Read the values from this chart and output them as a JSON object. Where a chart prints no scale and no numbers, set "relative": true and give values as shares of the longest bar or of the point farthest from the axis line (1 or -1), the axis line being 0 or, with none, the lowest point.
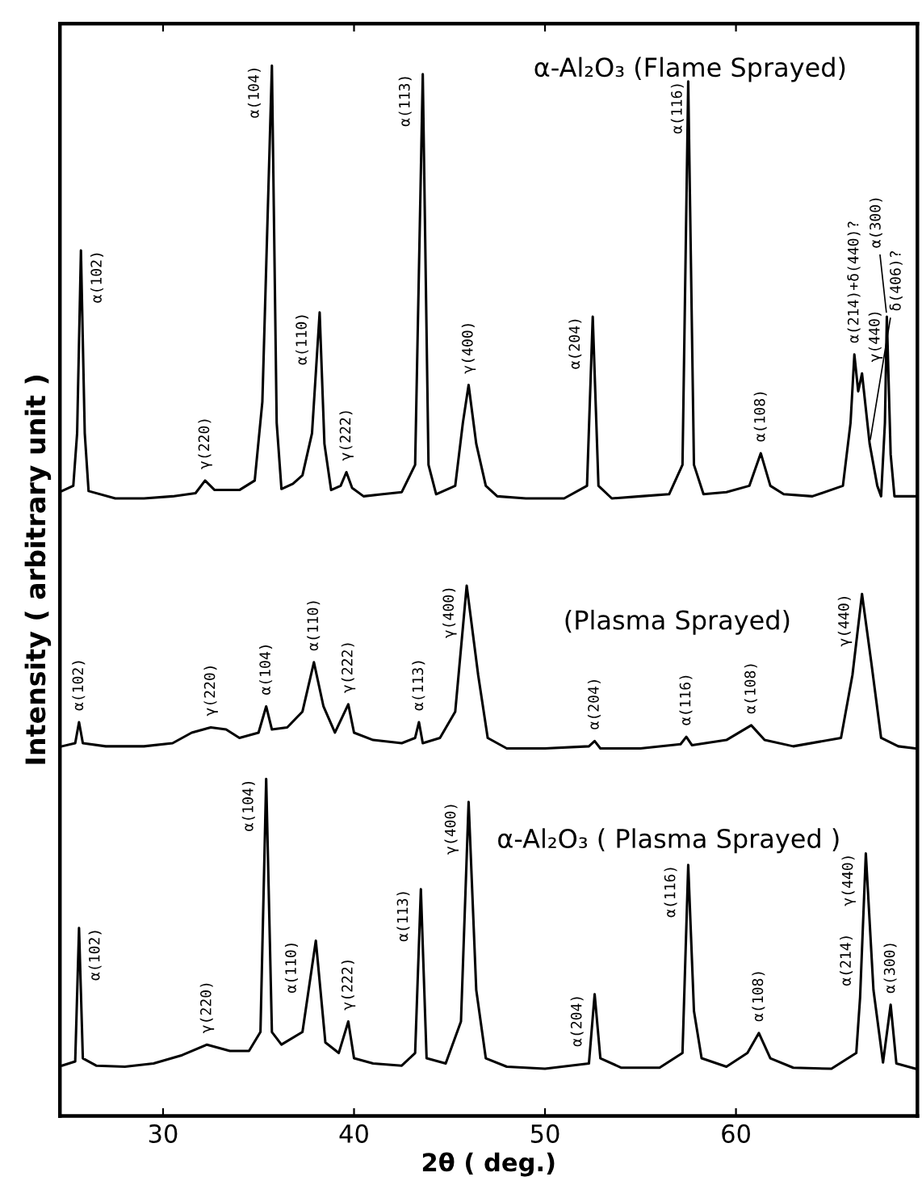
{
  "chart_data": {
    "type": "line",
    "relative": true,
    "xlabel": "2θ ( deg.)",
    "ylabel": "Intensity ( arbitrary unit )",
    "xlim": [
      24.6,
      69.5
    ],
    "xticks": [
      30,
      40,
      50,
      60
    ],
    "grid": false,
    "line_style": "solid",
    "series": [
      {
        "name": "α-Al₂O₃ (Flame Sprayed)",
        "color": "#000000",
        "x": [
          24.7,
          25.3,
          25.5,
          25.7,
          25.9,
          26.1,
          27.5,
          29,
          30.5,
          31.7,
          32.2,
          32.7,
          34,
          34.8,
          35.2,
          35.7,
          35.95,
          36.2,
          36.8,
          37.3,
          37.8,
          38.2,
          38.45,
          38.8,
          39.3,
          39.6,
          39.9,
          40.5,
          41.5,
          42.5,
          43.2,
          43.6,
          43.9,
          44.3,
          45.3,
          45.7,
          46.0,
          46.4,
          46.9,
          47.5,
          49,
          51,
          52.2,
          52.5,
          52.8,
          53.5,
          55,
          56.5,
          57.2,
          57.5,
          57.8,
          58.3,
          59.5,
          60.7,
          61.3,
          61.8,
          62.5,
          64,
          65.6,
          66.0,
          66.2,
          66.4,
          66.6,
          67.0,
          67.4,
          67.6,
          67.8,
          67.9,
          68.1,
          68.3,
          69.0,
          69.4
        ],
        "values": [
          0.595,
          0.6,
          0.65,
          0.824,
          0.65,
          0.595,
          0.588,
          0.588,
          0.59,
          0.593,
          0.605,
          0.596,
          0.596,
          0.605,
          0.68,
          1.0,
          0.66,
          0.597,
          0.602,
          0.61,
          0.65,
          0.765,
          0.64,
          0.596,
          0.6,
          0.613,
          0.598,
          0.59,
          0.592,
          0.594,
          0.62,
          0.992,
          0.62,
          0.592,
          0.6,
          0.66,
          0.696,
          0.64,
          0.6,
          0.59,
          0.588,
          0.588,
          0.6,
          0.761,
          0.6,
          0.588,
          0.59,
          0.592,
          0.62,
          0.985,
          0.62,
          0.592,
          0.594,
          0.6,
          0.631,
          0.6,
          0.592,
          0.59,
          0.6,
          0.66,
          0.725,
          0.69,
          0.707,
          0.64,
          0.6,
          0.59,
          0.66,
          0.761,
          0.63,
          0.59,
          0.59,
          0.59
        ]
      },
      {
        "name": "(Plasma Sprayed)",
        "color": "#000000",
        "x": [
          24.7,
          25.4,
          25.6,
          25.8,
          27,
          29,
          30.5,
          31.5,
          32.5,
          33.3,
          34,
          35.0,
          35.4,
          35.7,
          36.5,
          37.3,
          37.9,
          38.4,
          39,
          39.7,
          40.0,
          41,
          42.5,
          43.2,
          43.4,
          43.6,
          44.5,
          45.3,
          45.9,
          46.5,
          47.0,
          48,
          50,
          52.3,
          52.6,
          52.9,
          55,
          57.1,
          57.4,
          57.7,
          59.5,
          60.8,
          61.5,
          63,
          65.5,
          66.1,
          66.6,
          67.1,
          67.6,
          68.5,
          69.4
        ],
        "values": [
          0.352,
          0.355,
          0.375,
          0.355,
          0.352,
          0.352,
          0.355,
          0.365,
          0.37,
          0.368,
          0.36,
          0.365,
          0.39,
          0.368,
          0.37,
          0.385,
          0.432,
          0.39,
          0.365,
          0.392,
          0.365,
          0.358,
          0.355,
          0.36,
          0.375,
          0.355,
          0.36,
          0.385,
          0.505,
          0.42,
          0.36,
          0.35,
          0.35,
          0.352,
          0.357,
          0.35,
          0.35,
          0.354,
          0.361,
          0.353,
          0.358,
          0.372,
          0.358,
          0.352,
          0.36,
          0.42,
          0.497,
          0.43,
          0.36,
          0.352,
          0.35
        ]
      },
      {
        "name": "α-Al₂O₃ ( Plasma Sprayed )",
        "color": "#000000",
        "x": [
          24.7,
          25.4,
          25.6,
          25.8,
          26.5,
          28,
          29.5,
          31,
          32.3,
          33.5,
          34.5,
          35.1,
          35.4,
          35.7,
          36.2,
          37.3,
          38.0,
          38.5,
          39.2,
          39.7,
          40.0,
          41,
          42.5,
          43.2,
          43.5,
          43.8,
          44.8,
          45.6,
          46.0,
          46.4,
          46.9,
          48,
          50,
          52.3,
          52.6,
          52.9,
          54,
          56,
          57.2,
          57.5,
          57.8,
          58.2,
          59.5,
          60.6,
          61.2,
          61.8,
          63,
          65,
          66.3,
          66.5,
          66.8,
          67.2,
          67.7,
          68.1,
          68.4,
          69.4
        ],
        "values": [
          0.048,
          0.052,
          0.179,
          0.055,
          0.048,
          0.047,
          0.05,
          0.058,
          0.068,
          0.062,
          0.062,
          0.08,
          0.321,
          0.08,
          0.068,
          0.08,
          0.167,
          0.07,
          0.06,
          0.09,
          0.055,
          0.05,
          0.048,
          0.06,
          0.216,
          0.055,
          0.05,
          0.09,
          0.299,
          0.12,
          0.055,
          0.047,
          0.045,
          0.05,
          0.116,
          0.055,
          0.046,
          0.046,
          0.06,
          0.239,
          0.1,
          0.055,
          0.047,
          0.06,
          0.079,
          0.055,
          0.046,
          0.045,
          0.06,
          0.113,
          0.25,
          0.12,
          0.051,
          0.106,
          0.05,
          0.045
        ]
      }
    ],
    "annotations": [
      {
        "text": "α(102)",
        "x": 25.7,
        "y": 0.824
      },
      {
        "text": "γ(220)",
        "x": 32.2,
        "y": 0.605
      },
      {
        "text": "α(104)",
        "x": 35.7,
        "y": 1.0
      },
      {
        "text": "α(110)",
        "x": 38.2,
        "y": 0.765
      },
      {
        "text": "γ(222)",
        "x": 39.6,
        "y": 0.613
      },
      {
        "text": "α(113)",
        "x": 43.6,
        "y": 0.992
      },
      {
        "text": "γ(400)",
        "x": 46.0,
        "y": 0.696
      },
      {
        "text": "α(204)",
        "x": 52.5,
        "y": 0.761
      },
      {
        "text": "α(116)",
        "x": 57.5,
        "y": 0.985
      },
      {
        "text": "α(108)",
        "x": 61.3,
        "y": 0.631
      },
      {
        "text": "α(214)+δ(440)?",
        "x": 66.2,
        "y": 0.725
      },
      {
        "text": "γ(440)",
        "x": 66.6,
        "y": 0.707
      },
      {
        "text": "δ(406)?",
        "x": 67.0,
        "y": 0.64
      },
      {
        "text": "α(300)",
        "x": 67.9,
        "y": 0.761
      },
      {
        "text": "α(102)",
        "x": 25.6,
        "y": 0.375
      },
      {
        "text": "γ(220)",
        "x": 32.5,
        "y": 0.37
      },
      {
        "text": "α(104)",
        "x": 35.4,
        "y": 0.39
      },
      {
        "text": "α(110)",
        "x": 37.9,
        "y": 0.432
      },
      {
        "text": "γ(222)",
        "x": 39.7,
        "y": 0.392
      },
      {
        "text": "α(113)",
        "x": 43.4,
        "y": 0.375
      },
      {
        "text": "γ(400)",
        "x": 45.9,
        "y": 0.505
      },
      {
        "text": "α(204)",
        "x": 52.6,
        "y": 0.357
      },
      {
        "text": "α(116)",
        "x": 57.4,
        "y": 0.361
      },
      {
        "text": "α(108)",
        "x": 60.8,
        "y": 0.372
      },
      {
        "text": "γ(440)",
        "x": 66.6,
        "y": 0.497
      },
      {
        "text": "α(102)",
        "x": 25.6,
        "y": 0.179
      },
      {
        "text": "γ(220)",
        "x": 32.3,
        "y": 0.068
      },
      {
        "text": "α(104)",
        "x": 35.4,
        "y": 0.321
      },
      {
        "text": "α(110)",
        "x": 38.0,
        "y": 0.167
      },
      {
        "text": "γ(222)",
        "x": 39.7,
        "y": 0.09
      },
      {
        "text": "α(113)",
        "x": 43.5,
        "y": 0.216
      },
      {
        "text": "γ(400)",
        "x": 46.0,
        "y": 0.299
      },
      {
        "text": "α(204)",
        "x": 52.6,
        "y": 0.116
      },
      {
        "text": "α(116)",
        "x": 57.5,
        "y": 0.239
      },
      {
        "text": "α(108)",
        "x": 61.2,
        "y": 0.079
      },
      {
        "text": "α(214)",
        "x": 66.5,
        "y": 0.113
      },
      {
        "text": "γ(440)",
        "x": 66.8,
        "y": 0.25
      },
      {
        "text": "α(300)",
        "x": 68.1,
        "y": 0.106
      }
    ]
  }
}
